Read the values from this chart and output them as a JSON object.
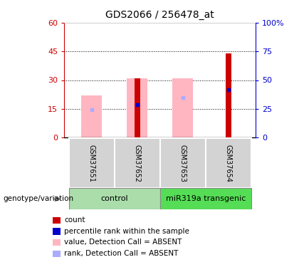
{
  "title": "GDS2066 / 256478_at",
  "samples": [
    "GSM37651",
    "GSM37652",
    "GSM37653",
    "GSM37654"
  ],
  "pink_bar_values": [
    22,
    31,
    31,
    0
  ],
  "red_bar_values": [
    0,
    31,
    0,
    44
  ],
  "blue_dot_values": [
    0,
    17,
    0,
    25
  ],
  "lavender_dot_values": [
    14.5,
    0,
    21,
    0
  ],
  "pink_only_dot": [
    14.5,
    0,
    0,
    0
  ],
  "ylim_left": [
    0,
    60
  ],
  "ylim_right": [
    0,
    100
  ],
  "yticks_left": [
    0,
    15,
    30,
    45,
    60
  ],
  "yticks_right": [
    0,
    25,
    50,
    75,
    100
  ],
  "left_axis_color": "#cc0000",
  "right_axis_color": "#0000cc",
  "pink_color": "#ffb6c1",
  "red_color": "#cc0000",
  "blue_color": "#0000cc",
  "lavender_color": "#aaaaff",
  "legend_items": [
    {
      "label": "count",
      "color": "#cc0000"
    },
    {
      "label": "percentile rank within the sample",
      "color": "#0000cc"
    },
    {
      "label": "value, Detection Call = ABSENT",
      "color": "#ffb6c1"
    },
    {
      "label": "rank, Detection Call = ABSENT",
      "color": "#aaaaff"
    }
  ],
  "group_row_label": "genotype/variation",
  "ctrl_color": "#aaddaa",
  "mir_color": "#55dd55",
  "fig_width": 4.2,
  "fig_height": 3.75,
  "dpi": 100
}
